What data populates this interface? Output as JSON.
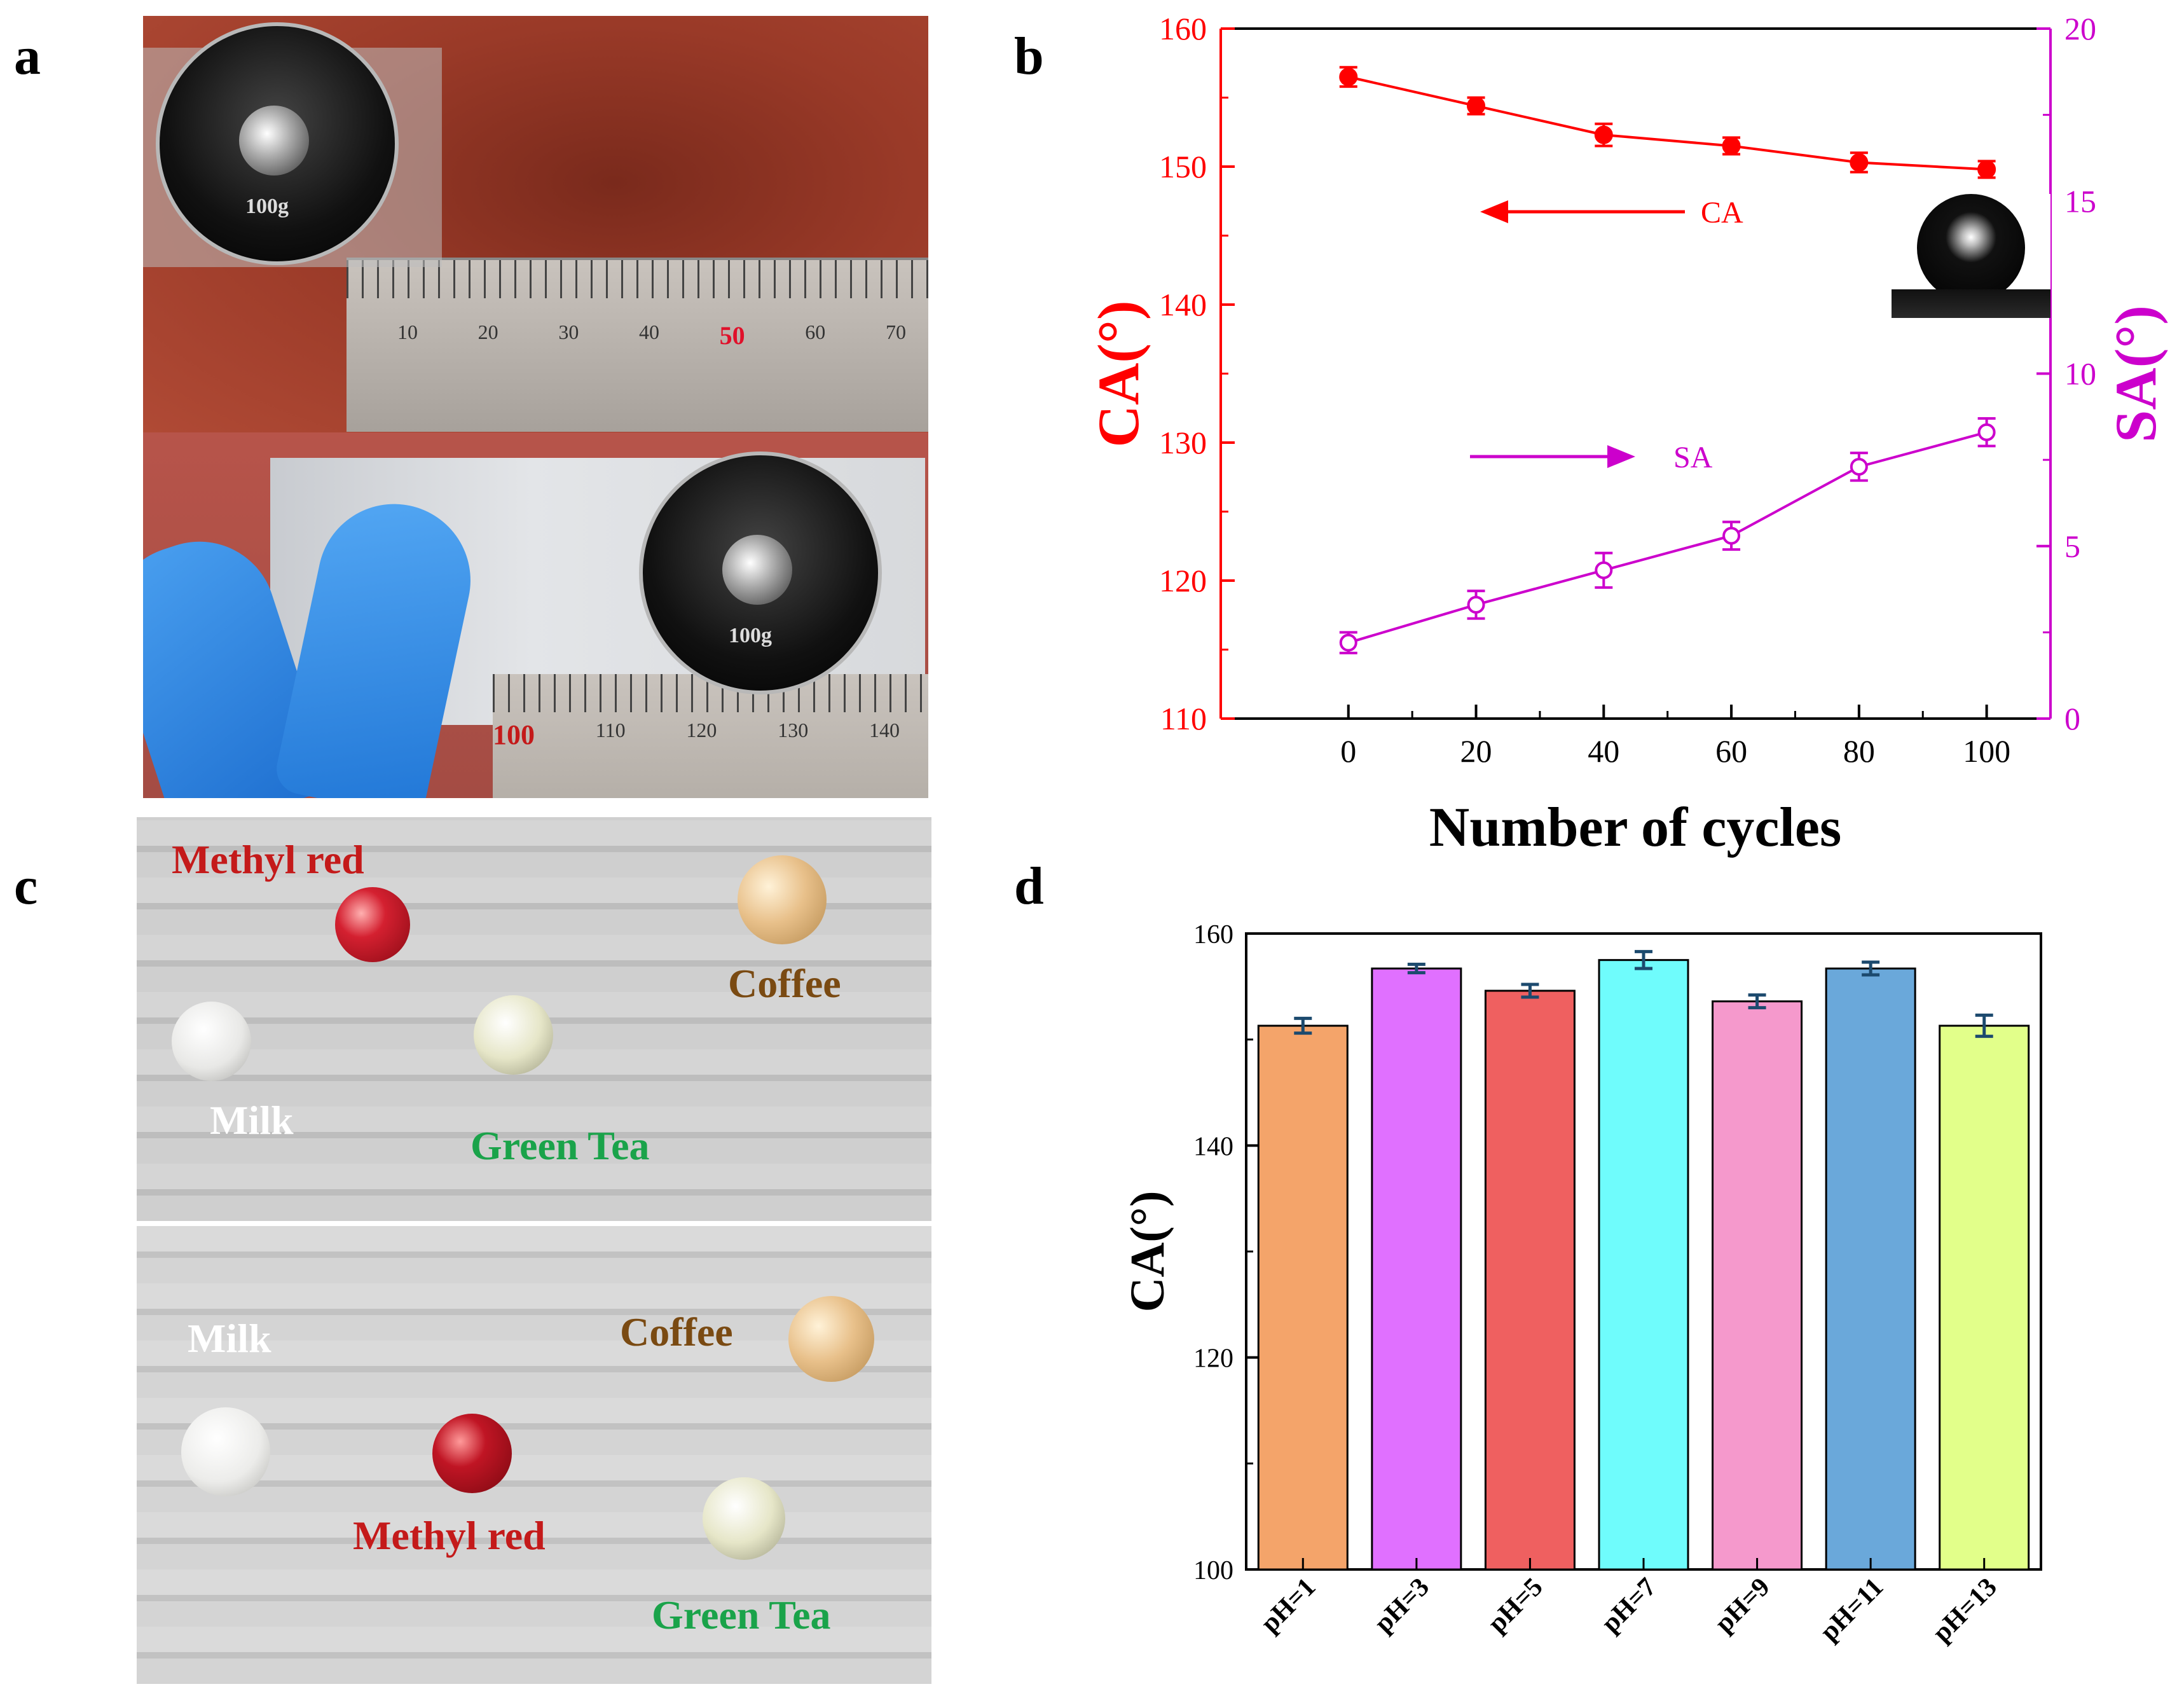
{
  "panels": {
    "a": "a",
    "b": "b",
    "c": "c",
    "d": "d"
  },
  "photo_a": {
    "weight_label_top": "100g",
    "weight_label_bottom": "100g",
    "ruler_top_ticks": [
      "10",
      "20",
      "30",
      "40",
      "50",
      "60",
      "70"
    ],
    "ruler_top_highlight": "50",
    "ruler_bottom_ticks": [
      "100",
      "110",
      "120",
      "130",
      "140"
    ],
    "ruler_bottom_highlight": "100"
  },
  "photo_c": {
    "top": {
      "methyl_red": "Methyl red",
      "coffee": "Coffee",
      "milk": "Milk",
      "green_tea": "Green Tea"
    },
    "bottom": {
      "milk": "Milk",
      "coffee": "Coffee",
      "methyl_red": "Methyl red",
      "green_tea": "Green Tea"
    },
    "colors": {
      "methyl_red": "#c41a1a",
      "coffee": "#7a4a12",
      "milk": "#ffffff",
      "green_tea": "#1aa34a"
    }
  },
  "chart_data": [
    {
      "panel": "b",
      "type": "line",
      "xlabel": "Number of cycles",
      "ylabel_left": "CA(°)",
      "ylabel_right": "SA(°)",
      "x": [
        0,
        20,
        40,
        60,
        80,
        100
      ],
      "xlim": [
        -20,
        110
      ],
      "xticks": [
        "0",
        "20",
        "40",
        "60",
        "80",
        "100"
      ],
      "ylim_left": [
        110,
        160
      ],
      "yticks_left": [
        "110",
        "120",
        "130",
        "140",
        "150",
        "160"
      ],
      "ylim_right": [
        0,
        20
      ],
      "yticks_right": [
        "0",
        "5",
        "10",
        "15",
        "20"
      ],
      "series": [
        {
          "name": "CA",
          "axis": "left",
          "color": "#ff0000",
          "marker": "filled-circle",
          "values": [
            156.5,
            154.4,
            152.3,
            151.5,
            150.3,
            149.8
          ],
          "errors": [
            0.7,
            0.6,
            0.8,
            0.6,
            0.7,
            0.6
          ]
        },
        {
          "name": "SA",
          "axis": "right",
          "color": "#cc00cc",
          "marker": "open-circle",
          "values": [
            2.2,
            3.3,
            4.3,
            5.3,
            7.3,
            8.3
          ],
          "errors": [
            0.3,
            0.4,
            0.5,
            0.4,
            0.4,
            0.4
          ]
        }
      ],
      "annotations": {
        "ca_label": "CA",
        "sa_label": "SA"
      }
    },
    {
      "panel": "d",
      "type": "bar",
      "ylabel": "CA(°)",
      "categories": [
        "pH=1",
        "pH=3",
        "pH=5",
        "pH=7",
        "pH=9",
        "pH=11",
        "pH=13"
      ],
      "values": [
        151.3,
        156.7,
        154.6,
        157.5,
        153.6,
        156.7,
        151.3
      ],
      "errors": [
        0.7,
        0.4,
        0.6,
        0.8,
        0.6,
        0.6,
        1.0
      ],
      "colors": [
        "#f4a46a",
        "#e070ff",
        "#ef6060",
        "#6ffcfc",
        "#f599cc",
        "#6aa8da",
        "#e2ff8a"
      ],
      "ylim": [
        100,
        160
      ],
      "yticks": [
        "100",
        "120",
        "140",
        "160"
      ]
    }
  ]
}
